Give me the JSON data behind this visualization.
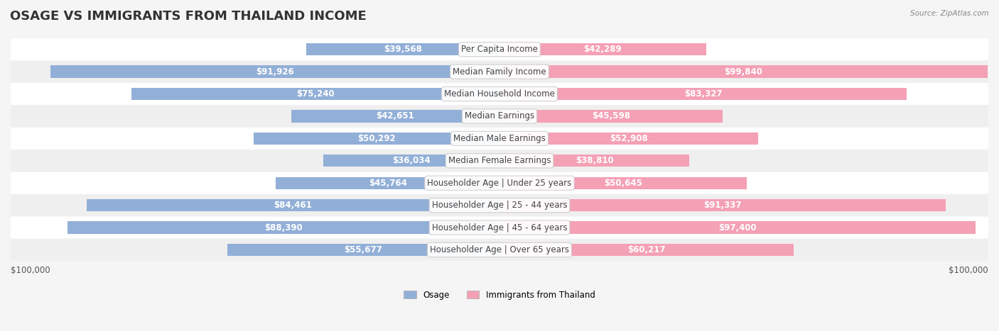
{
  "title": "OSAGE VS IMMIGRANTS FROM THAILAND INCOME",
  "source": "Source: ZipAtlas.com",
  "categories": [
    "Per Capita Income",
    "Median Family Income",
    "Median Household Income",
    "Median Earnings",
    "Median Male Earnings",
    "Median Female Earnings",
    "Householder Age | Under 25 years",
    "Householder Age | 25 - 44 years",
    "Householder Age | 45 - 64 years",
    "Householder Age | Over 65 years"
  ],
  "osage_values": [
    39568,
    91926,
    75240,
    42651,
    50292,
    36034,
    45764,
    84461,
    88390,
    55677
  ],
  "thailand_values": [
    42289,
    99840,
    83327,
    45598,
    52908,
    38810,
    50645,
    91337,
    97400,
    60217
  ],
  "osage_labels": [
    "$39,568",
    "$91,926",
    "$75,240",
    "$42,651",
    "$50,292",
    "$36,034",
    "$45,764",
    "$84,461",
    "$88,390",
    "$55,677"
  ],
  "thailand_labels": [
    "$42,289",
    "$99,840",
    "$83,327",
    "$45,598",
    "$52,908",
    "$38,810",
    "$50,645",
    "$91,337",
    "$97,400",
    "$60,217"
  ],
  "osage_color": "#92afd7",
  "thailand_color": "#f4a0b5",
  "osage_color_dark": "#6a8fc0",
  "thailand_color_dark": "#e8608a",
  "max_value": 100000,
  "x_label_left": "$100,000",
  "x_label_right": "$100,000",
  "legend_osage": "Osage",
  "legend_thailand": "Immigrants from Thailand",
  "background_color": "#f5f5f5",
  "row_bg_light": "#ffffff",
  "row_bg_dark": "#efefef",
  "bar_height": 0.55,
  "title_fontsize": 13,
  "label_fontsize": 8.5,
  "category_fontsize": 8.5
}
